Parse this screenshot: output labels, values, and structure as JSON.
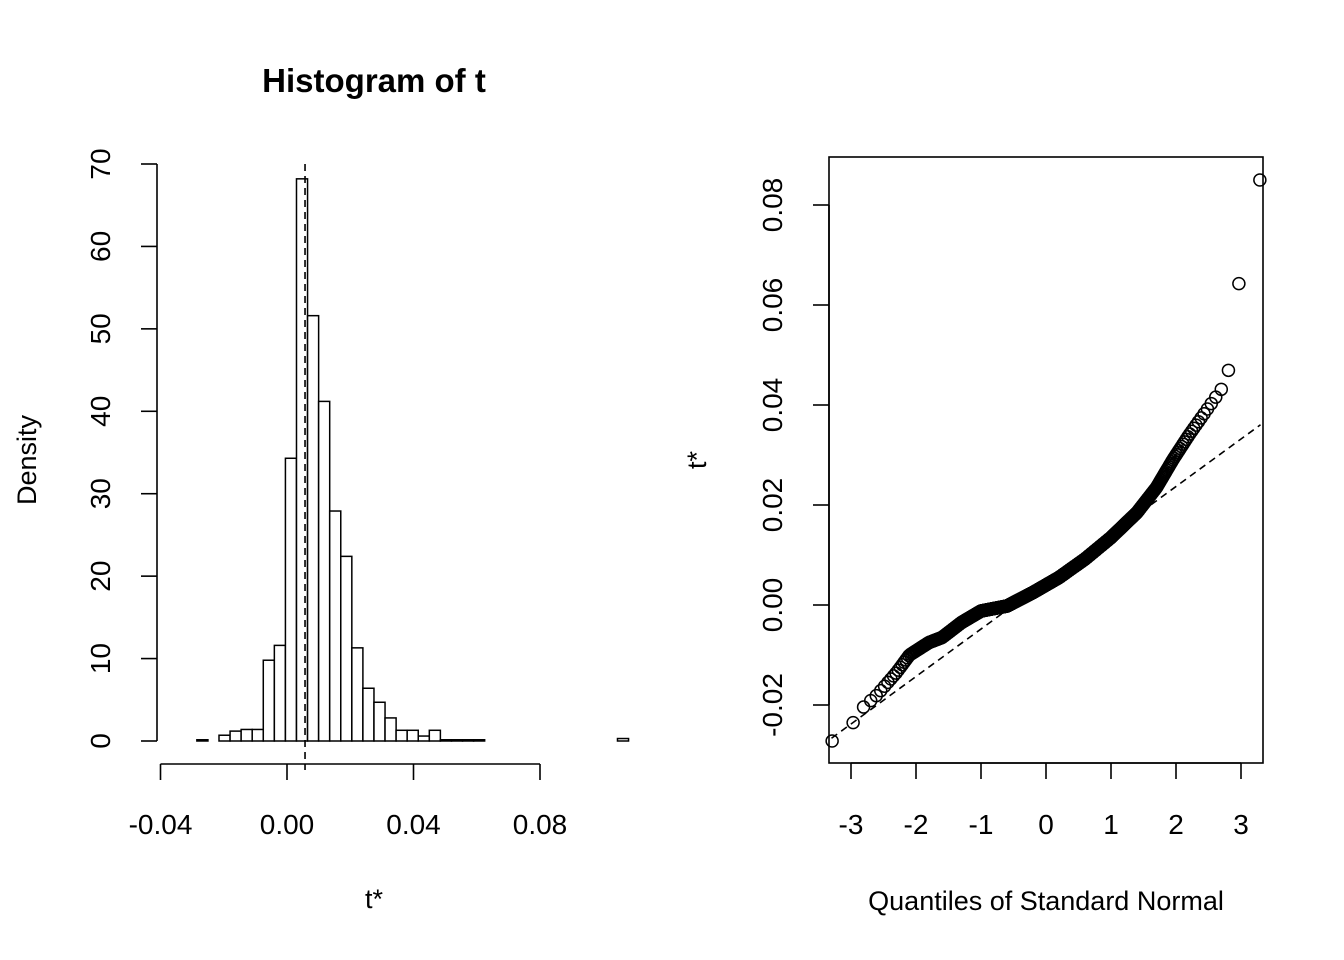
{
  "chart_data": [
    {
      "type": "bar",
      "subtype": "histogram",
      "title": "Histogram of t",
      "xlabel": "t*",
      "ylabel": "Density",
      "xlim": [
        -0.04,
        0.09
      ],
      "ylim": [
        0,
        70
      ],
      "xticks": [
        -0.04,
        0.0,
        0.04,
        0.08
      ],
      "xtick_labels": [
        "-0.04",
        "0.00",
        "0.04",
        "0.08"
      ],
      "yticks": [
        0,
        10,
        20,
        30,
        40,
        50,
        60,
        70
      ],
      "ytick_labels": [
        "0",
        "10",
        "20",
        "30",
        "40",
        "50",
        "60",
        "70"
      ],
      "bin_width": 0.0035,
      "bin_start": -0.0355,
      "density": [
        0,
        0,
        0.15,
        0,
        0.7,
        1.2,
        1.4,
        1.4,
        9.8,
        11.6,
        34.3,
        68.2,
        51.6,
        41.2,
        27.9,
        22.4,
        11.3,
        6.4,
        4.7,
        2.8,
        1.3,
        1.3,
        0.6,
        1.3,
        0.15,
        0.15,
        0.15,
        0.15,
        0,
        0,
        0,
        0,
        0,
        0,
        0,
        0,
        0,
        0,
        0,
        0,
        0.3,
        0
      ],
      "vline": 0.0057,
      "grid": false
    },
    {
      "type": "scatter",
      "subtype": "normal-qq",
      "xlabel": "Quantiles of Standard Normal",
      "ylabel": "t*",
      "xlim": [
        -3.3,
        3.3
      ],
      "ylim": [
        -0.031,
        0.09
      ],
      "xticks": [
        -3,
        -2,
        -1,
        0,
        1,
        2,
        3
      ],
      "xtick_labels": [
        "-3",
        "-2",
        "-1",
        "0",
        "1",
        "2",
        "3"
      ],
      "yticks": [
        -0.02,
        0.0,
        0.02,
        0.04,
        0.06,
        0.08
      ],
      "ytick_labels": [
        "-0.02",
        "0.00",
        "0.02",
        "0.04",
        "0.06",
        "0.08"
      ],
      "n_points": 999,
      "reference_line": {
        "intercept": 0.0047,
        "slope": 0.0095
      },
      "anchor_quantiles": [
        [
          -3.3,
          -0.0265
        ],
        [
          -3.09,
          -0.0272
        ],
        [
          -2.9,
          -0.0215
        ],
        [
          -2.6,
          -0.018
        ],
        [
          -2.3,
          -0.0135
        ],
        [
          -2.1,
          -0.01
        ],
        [
          -1.8,
          -0.0075
        ],
        [
          -1.6,
          -0.0065
        ],
        [
          -1.3,
          -0.0035
        ],
        [
          -1.0,
          -0.0012
        ],
        [
          -0.6,
          -0.0002
        ],
        [
          -0.2,
          0.0025
        ],
        [
          0.2,
          0.0055
        ],
        [
          0.6,
          0.0092
        ],
        [
          1.0,
          0.0135
        ],
        [
          1.4,
          0.0185
        ],
        [
          1.7,
          0.0235
        ],
        [
          1.95,
          0.029
        ],
        [
          2.2,
          0.034
        ],
        [
          2.5,
          0.0395
        ],
        [
          2.7,
          0.0432
        ],
        [
          2.88,
          0.0495
        ],
        [
          3.09,
          0.085
        ],
        [
          3.3,
          0.085
        ]
      ],
      "grid": false
    }
  ]
}
